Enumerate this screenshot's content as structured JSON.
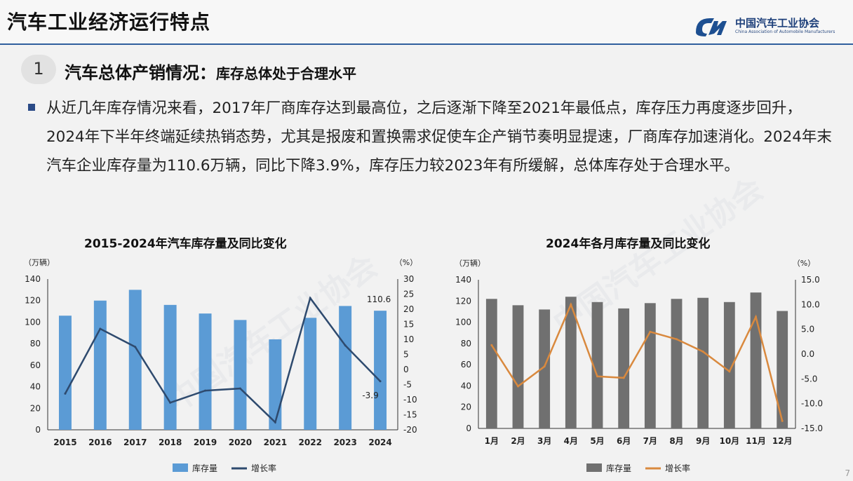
{
  "slide": {
    "title": "汽车工业经济运行特点",
    "logo_text": "中国汽车工业协会",
    "logo_sub": "China Association of Automobile Manufacturers",
    "section_number": "1",
    "section_title": "汽车总体产销情况：",
    "section_subtitle": "库存总体处于合理水平",
    "paragraph": "从近几年库存情况来看，2017年厂商库存达到最高位，之后逐渐下降至2021年最低点，库存压力再度逐步回升，2024年下半年终端延续热销态势，尤其是报废和置换需求促使车企产销节奏明显提速，厂商库存加速消化。2024年末汽车企业库存量为110.6万辆，同比下降3.9%，库存压力较2023年有所缓解，总体库存处于合理水平。",
    "page_number": "7",
    "watermark": "中国汽车工业协会"
  },
  "colors": {
    "accent": "#2f5f9e",
    "bar_blue": "#5b9bd5",
    "line_navy": "#2e4a6e",
    "bar_gray": "#707070",
    "line_orange": "#d9893e"
  },
  "chart_data": [
    {
      "type": "bar",
      "title": "2015-2024年汽车库存量及同比变化",
      "y_unit_left": "（万辆）",
      "y_unit_right": "（%）",
      "categories": [
        "2015",
        "2016",
        "2017",
        "2018",
        "2019",
        "2020",
        "2021",
        "2022",
        "2023",
        "2024"
      ],
      "series": [
        {
          "name": "库存量",
          "type": "bar",
          "axis": "left",
          "values": [
            106,
            120,
            130,
            116,
            108,
            102,
            84,
            104,
            115,
            110.6
          ]
        },
        {
          "name": "增长率",
          "type": "line",
          "axis": "right",
          "values": [
            -8,
            13.5,
            7.5,
            -11,
            -7,
            -6.3,
            -17.5,
            23.7,
            8,
            -3.9
          ]
        }
      ],
      "ylim_left": [
        0,
        140
      ],
      "yticks_left": [
        0,
        20,
        40,
        60,
        80,
        100,
        120,
        140
      ],
      "ylim_right": [
        -20,
        30
      ],
      "yticks_right": [
        -20,
        -15,
        -10,
        -5,
        0,
        5,
        10,
        15,
        20,
        25,
        30
      ],
      "data_labels": [
        {
          "series": "库存量",
          "index": 9,
          "text": "110.6"
        },
        {
          "series": "增长率",
          "index": 9,
          "text": "-3.9"
        }
      ],
      "legend": "bottom",
      "grid": false
    },
    {
      "type": "bar",
      "title": "2024年各月库存量及同比变化",
      "y_unit_left": "（万辆）",
      "y_unit_right": "（%）",
      "categories": [
        "1月",
        "2月",
        "3月",
        "4月",
        "5月",
        "6月",
        "7月",
        "8月",
        "9月",
        "10月",
        "11月",
        "12月"
      ],
      "series": [
        {
          "name": "库存量",
          "type": "bar",
          "axis": "left",
          "values": [
            122,
            116,
            112,
            124,
            119,
            113,
            118,
            122,
            123,
            119,
            128,
            110.6
          ]
        },
        {
          "name": "增长率",
          "type": "line",
          "axis": "right",
          "values": [
            1.8,
            -6.5,
            -2.5,
            10,
            -4.5,
            -4.8,
            4.5,
            3,
            0.5,
            -3.5,
            7.5,
            -13.5
          ]
        }
      ],
      "ylim_left": [
        0,
        140
      ],
      "yticks_left": [
        0,
        20,
        40,
        60,
        80,
        100,
        120,
        140
      ],
      "ylim_right": [
        -15,
        15
      ],
      "yticks_right": [
        "-15.0",
        "-10.0",
        "-5.0",
        "0.0",
        "5.0",
        "10.0",
        "15.0"
      ],
      "legend": "bottom",
      "grid": false
    }
  ]
}
